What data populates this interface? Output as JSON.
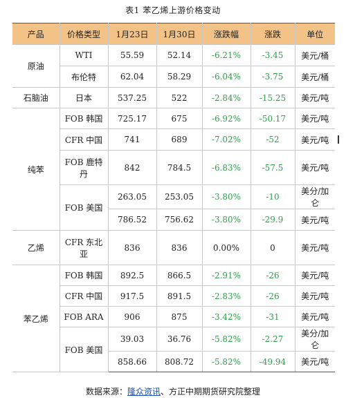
{
  "caption": "表1 苯乙烯上游价格变动",
  "headers": [
    "产品",
    "价格类型",
    "1月23日",
    "1月30日",
    "涨跌幅",
    "涨跌",
    "单位"
  ],
  "rows": [
    {
      "product": "原油",
      "type": "WTI",
      "v1": "55.59",
      "v2": "52.14",
      "pct": "-6.21%",
      "chg": "-3.45",
      "unit": "美元/桶"
    },
    {
      "type": "布伦特",
      "v1": "62.04",
      "v2": "58.29",
      "pct": "-6.04%",
      "chg": "-3.75",
      "unit": "美元/桶"
    },
    {
      "product": "石脑油",
      "type": "日本",
      "v1": "537.25",
      "v2": "522",
      "pct": "-2.84%",
      "chg": "-15.25",
      "unit": "美元/吨"
    },
    {
      "product": "纯苯",
      "type": "FOB 韩国",
      "v1": "725.17",
      "v2": "675",
      "pct": "-6.92%",
      "chg": "-50.17",
      "unit": "美元/吨"
    },
    {
      "type": "CFR 中国",
      "v1": "741",
      "v2": "689",
      "pct": "-7.02%",
      "chg": "-52",
      "unit": "美元/吨"
    },
    {
      "type": "FOB 鹿特丹",
      "v1": "842",
      "v2": "784.5",
      "pct": "-6.83%",
      "chg": "-57.5",
      "unit": "美元/吨"
    },
    {
      "type": "FOB 美国",
      "v1": "263.05",
      "v2": "253.05",
      "pct": "-3.80%",
      "chg": "-10",
      "unit": "美分/加仑"
    },
    {
      "v1": "786.52",
      "v2": "756.62",
      "pct": "-3.80%",
      "chg": "-29.9",
      "unit": "美元/吨"
    },
    {
      "product": "乙烯",
      "type": "CFR 东北亚",
      "v1": "836",
      "v2": "836",
      "pct": "0.00%",
      "chg": "0",
      "unit": "美元/吨"
    },
    {
      "product": "苯乙烯",
      "type": "FOB 韩国",
      "v1": "892.5",
      "v2": "866.5",
      "pct": "-2.91%",
      "chg": "-26",
      "unit": "美元/吨"
    },
    {
      "type": "CFR 中国",
      "v1": "917.5",
      "v2": "891.5",
      "pct": "-2.83%",
      "chg": "-26",
      "unit": "美元/吨"
    },
    {
      "type": "FOB ARA",
      "v1": "906",
      "v2": "875",
      "pct": "-3.42%",
      "chg": "-31",
      "unit": "美元/吨"
    },
    {
      "type": "FOB 美国",
      "v1": "39.03",
      "v2": "36.76",
      "pct": "-5.82%",
      "chg": "-2.27",
      "unit": "美分/加仑"
    },
    {
      "v1": "858.66",
      "v2": "808.72",
      "pct": "-5.82%",
      "chg": "-49.94",
      "unit": "美元/吨"
    }
  ],
  "source": {
    "prefix": "数据来源：",
    "link": "隆众资讯",
    "suffix": "、方正中期期货研究院整理"
  },
  "colors": {
    "header_bg": "#f3c287",
    "negative": "#2da14a"
  }
}
